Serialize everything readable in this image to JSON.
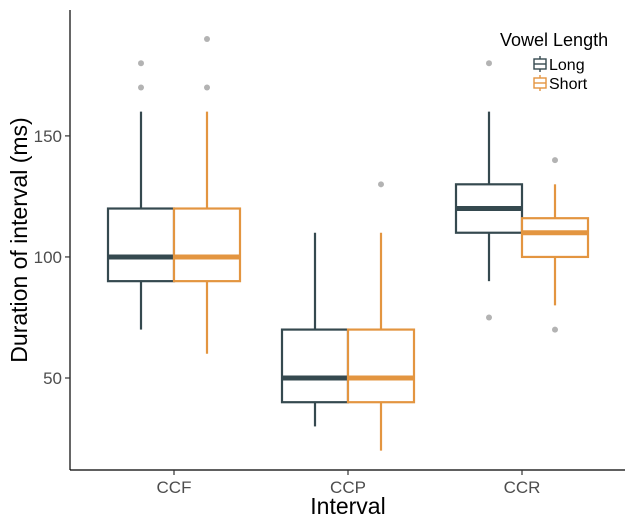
{
  "chart_data": {
    "type": "box",
    "title": "",
    "xlabel": "Interval",
    "ylabel": "Duration of interval (ms)",
    "categories": [
      "CCF",
      "CCP",
      "CCR"
    ],
    "ylim": [
      12,
      202
    ],
    "yticks": [
      50,
      100,
      150
    ],
    "grid": false,
    "legend": {
      "title": "Vowel Length",
      "placement": "top-right"
    },
    "series": [
      {
        "name": "Long",
        "color": "#35494f",
        "boxes": [
          {
            "category": "CCF",
            "whisker_low": 70,
            "q1": 90,
            "median": 100,
            "q3": 120,
            "whisker_high": 160,
            "outliers": [
              170,
              180
            ]
          },
          {
            "category": "CCP",
            "whisker_low": 30,
            "q1": 40,
            "median": 50,
            "q3": 70,
            "whisker_high": 110,
            "outliers": []
          },
          {
            "category": "CCR",
            "whisker_low": 90,
            "q1": 110,
            "median": 120,
            "q3": 130,
            "whisker_high": 160,
            "outliers": [
              75,
              180
            ]
          }
        ]
      },
      {
        "name": "Short",
        "color": "#e39540",
        "boxes": [
          {
            "category": "CCF",
            "whisker_low": 60,
            "q1": 90,
            "median": 100,
            "q3": 120,
            "whisker_high": 160,
            "outliers": [
              170,
              190
            ]
          },
          {
            "category": "CCP",
            "whisker_low": 20,
            "q1": 40,
            "median": 50,
            "q3": 70,
            "whisker_high": 110,
            "outliers": [
              130
            ]
          },
          {
            "category": "CCR",
            "whisker_low": 80,
            "q1": 100,
            "median": 110,
            "q3": 116,
            "whisker_high": 130,
            "outliers": [
              70,
              140
            ]
          }
        ]
      }
    ],
    "outlier_color": "#b3b3b3",
    "axis_color": "#000000",
    "tick_color": "#4d4d4d"
  }
}
